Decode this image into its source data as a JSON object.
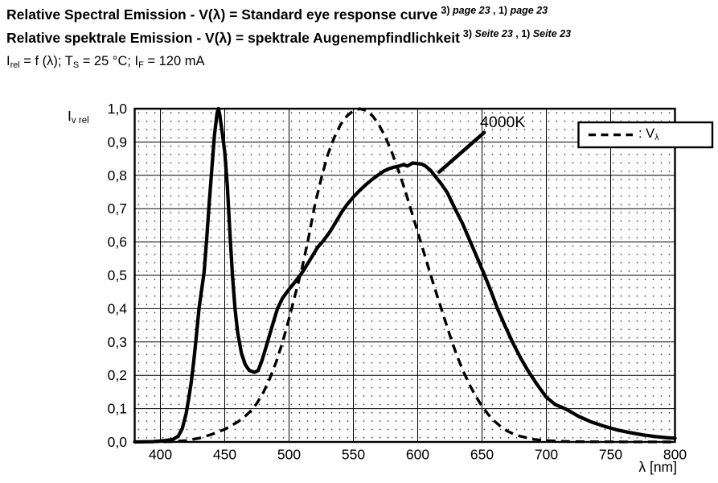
{
  "header": {
    "title_en": "Relative Spectral Emission - V(λ) = Standard eye response curve",
    "title_en_refs": [
      {
        "t": "3) "
      },
      {
        "t": "page 23",
        "i": true
      },
      {
        "t": " , 1) "
      },
      {
        "t": "page 23",
        "i": true
      }
    ],
    "title_de": "Relative spektrale Emission - V(λ) = spektrale Augenempfindlichkeit",
    "title_de_refs": [
      {
        "t": "3) "
      },
      {
        "t": "Seite 23",
        "i": true
      },
      {
        "t": " , 1) "
      },
      {
        "t": "Seite 23",
        "i": true
      }
    ],
    "conditions_segments": [
      {
        "t": "I"
      },
      {
        "t": "rel",
        "sub": true
      },
      {
        "t": " = f (λ); T"
      },
      {
        "t": "S",
        "sub": true
      },
      {
        "t": " = 25 °C; I"
      },
      {
        "t": "F",
        "sub": true
      },
      {
        "t": " = 120 mA"
      }
    ]
  },
  "chart_data": {
    "type": "line",
    "title": "Relative Spectral Emission - V(λ) = Standard eye response curve",
    "xlabel": "λ [nm]",
    "ylabel": "Iv rel",
    "ylabel_segments": [
      {
        "t": "I"
      },
      {
        "t": "v rel",
        "sub": true
      }
    ],
    "xlim": [
      380,
      800
    ],
    "ylim": [
      0,
      1.0
    ],
    "grid": "major solid lines every 50 nm and 0.1; dotted minor lattice",
    "x_ticks": [
      {
        "v": 400,
        "label": "400"
      },
      {
        "v": 450,
        "label": "450"
      },
      {
        "v": 500,
        "label": "500"
      },
      {
        "v": 550,
        "label": "550"
      },
      {
        "v": 600,
        "label": "600"
      },
      {
        "v": 650,
        "label": "650"
      },
      {
        "v": 700,
        "label": "700"
      },
      {
        "v": 750,
        "label": "750"
      },
      {
        "v": 800,
        "label": "800"
      }
    ],
    "y_ticks": [
      {
        "v": 1.0,
        "label": "1,0"
      },
      {
        "v": 0.9,
        "label": "0,9"
      },
      {
        "v": 0.8,
        "label": "0,8"
      },
      {
        "v": 0.7,
        "label": "0,7"
      },
      {
        "v": 0.6,
        "label": "0,6"
      },
      {
        "v": 0.5,
        "label": "0,5"
      },
      {
        "v": 0.4,
        "label": "0,4"
      },
      {
        "v": 0.3,
        "label": "0,3"
      },
      {
        "v": 0.2,
        "label": "0,2"
      },
      {
        "v": 0.1,
        "label": "0,1"
      },
      {
        "v": 0.0,
        "label": "0,0"
      }
    ],
    "series": [
      {
        "name": "4000K LED emission",
        "style": "solid",
        "points": [
          [
            380,
            0
          ],
          [
            394,
            0.001
          ],
          [
            404,
            0.004
          ],
          [
            410,
            0.008
          ],
          [
            414,
            0.018
          ],
          [
            417,
            0.04
          ],
          [
            420,
            0.085
          ],
          [
            422,
            0.13
          ],
          [
            424,
            0.18
          ],
          [
            426,
            0.245
          ],
          [
            428,
            0.32
          ],
          [
            430,
            0.4
          ],
          [
            432,
            0.455
          ],
          [
            434,
            0.51
          ],
          [
            436,
            0.61
          ],
          [
            438,
            0.72
          ],
          [
            440,
            0.82
          ],
          [
            442,
            0.92
          ],
          [
            444,
            0.985
          ],
          [
            445,
            1.0
          ],
          [
            446,
            0.985
          ],
          [
            448,
            0.93
          ],
          [
            450,
            0.87
          ],
          [
            452,
            0.77
          ],
          [
            454,
            0.63
          ],
          [
            456,
            0.5
          ],
          [
            458,
            0.4
          ],
          [
            460,
            0.33
          ],
          [
            463,
            0.266
          ],
          [
            466,
            0.232
          ],
          [
            469,
            0.215
          ],
          [
            473,
            0.209
          ],
          [
            476,
            0.214
          ],
          [
            479,
            0.245
          ],
          [
            482,
            0.283
          ],
          [
            485,
            0.323
          ],
          [
            488,
            0.362
          ],
          [
            491,
            0.4
          ],
          [
            495,
            0.432
          ],
          [
            500,
            0.458
          ],
          [
            504,
            0.477
          ],
          [
            508,
            0.497
          ],
          [
            511,
            0.513
          ],
          [
            514,
            0.532
          ],
          [
            518,
            0.557
          ],
          [
            522,
            0.583
          ],
          [
            527,
            0.605
          ],
          [
            532,
            0.632
          ],
          [
            537,
            0.664
          ],
          [
            541,
            0.69
          ],
          [
            545,
            0.712
          ],
          [
            550,
            0.735
          ],
          [
            555,
            0.755
          ],
          [
            560,
            0.773
          ],
          [
            565,
            0.789
          ],
          [
            569,
            0.8
          ],
          [
            573,
            0.811
          ],
          [
            577,
            0.819
          ],
          [
            581,
            0.824
          ],
          [
            585,
            0.827
          ],
          [
            589,
            0.832
          ],
          [
            592,
            0.828
          ],
          [
            596,
            0.837
          ],
          [
            600,
            0.835
          ],
          [
            603,
            0.834
          ],
          [
            606,
            0.828
          ],
          [
            610,
            0.815
          ],
          [
            613,
            0.8
          ],
          [
            618,
            0.776
          ],
          [
            623,
            0.748
          ],
          [
            629,
            0.7
          ],
          [
            635,
            0.654
          ],
          [
            641,
            0.6
          ],
          [
            647,
            0.546
          ],
          [
            652,
            0.5
          ],
          [
            657,
            0.452
          ],
          [
            662,
            0.4
          ],
          [
            668,
            0.347
          ],
          [
            674,
            0.297
          ],
          [
            680,
            0.252
          ],
          [
            686,
            0.212
          ],
          [
            692,
            0.177
          ],
          [
            700,
            0.134
          ],
          [
            707,
            0.112
          ],
          [
            715,
            0.099
          ],
          [
            725,
            0.077
          ],
          [
            735,
            0.06
          ],
          [
            745,
            0.047
          ],
          [
            755,
            0.036
          ],
          [
            765,
            0.028
          ],
          [
            775,
            0.021
          ],
          [
            785,
            0.016
          ],
          [
            793,
            0.013
          ],
          [
            800,
            0.011
          ]
        ]
      },
      {
        "name": "V(λ) standard eye response",
        "style": "dashed",
        "points": [
          [
            380,
            0
          ],
          [
            400,
            0.0005
          ],
          [
            410,
            0.001
          ],
          [
            420,
            0.004
          ],
          [
            430,
            0.011
          ],
          [
            440,
            0.023
          ],
          [
            450,
            0.038
          ],
          [
            460,
            0.06
          ],
          [
            465,
            0.074
          ],
          [
            470,
            0.092
          ],
          [
            475,
            0.116
          ],
          [
            480,
            0.148
          ],
          [
            485,
            0.19
          ],
          [
            490,
            0.24
          ],
          [
            495,
            0.3
          ],
          [
            500,
            0.37
          ],
          [
            505,
            0.445
          ],
          [
            510,
            0.52
          ],
          [
            515,
            0.61
          ],
          [
            520,
            0.71
          ],
          [
            525,
            0.79
          ],
          [
            530,
            0.861
          ],
          [
            535,
            0.912
          ],
          [
            540,
            0.952
          ],
          [
            545,
            0.978
          ],
          [
            550,
            0.994
          ],
          [
            555,
            1.0
          ],
          [
            560,
            0.994
          ],
          [
            565,
            0.978
          ],
          [
            570,
            0.951
          ],
          [
            575,
            0.914
          ],
          [
            580,
            0.868
          ],
          [
            585,
            0.815
          ],
          [
            590,
            0.757
          ],
          [
            595,
            0.694
          ],
          [
            600,
            0.63
          ],
          [
            605,
            0.566
          ],
          [
            610,
            0.502
          ],
          [
            615,
            0.44
          ],
          [
            620,
            0.38
          ],
          [
            625,
            0.32
          ],
          [
            630,
            0.264
          ],
          [
            635,
            0.216
          ],
          [
            640,
            0.174
          ],
          [
            645,
            0.138
          ],
          [
            650,
            0.107
          ],
          [
            655,
            0.082
          ],
          [
            660,
            0.061
          ],
          [
            665,
            0.045
          ],
          [
            670,
            0.032
          ],
          [
            675,
            0.023
          ],
          [
            680,
            0.017
          ],
          [
            690,
            0.008
          ],
          [
            700,
            0.004
          ],
          [
            710,
            0.002
          ],
          [
            720,
            0.001
          ],
          [
            740,
            0.0004
          ],
          [
            760,
            0.0002
          ],
          [
            800,
            0
          ]
        ]
      }
    ],
    "legend": {
      "position": "top-right",
      "entries": [
        {
          "style": "dashed",
          "label": ": Vλ",
          "label_segments": [
            {
              "t": ": V"
            },
            {
              "t": "λ",
              "sub": true
            }
          ]
        }
      ]
    },
    "annotation": {
      "label": "4000K",
      "points_to": {
        "nm": 616,
        "value": 0.81
      }
    }
  },
  "colors": {
    "ink": "#000000",
    "background": "#ffffff",
    "grid_dot": "#3a3a3a"
  }
}
